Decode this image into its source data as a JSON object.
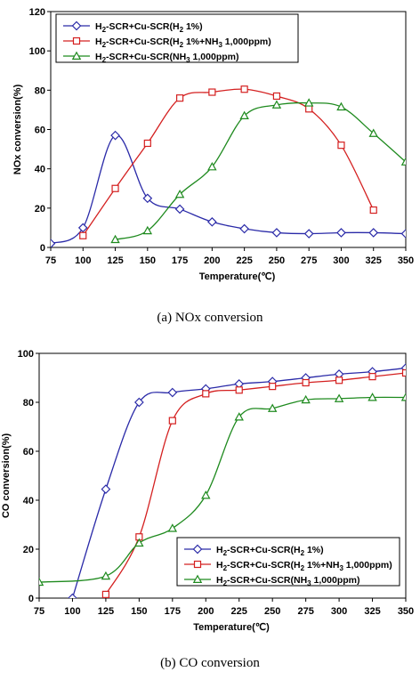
{
  "chart_data": [
    {
      "type": "line",
      "caption": "(a)  NOx  conversion",
      "xlabel": "Temperature(℃)",
      "ylabel": "NOx conversion(%)",
      "xlim": [
        75,
        350
      ],
      "ylim": [
        0,
        120
      ],
      "xticks": [
        75,
        100,
        125,
        150,
        175,
        200,
        225,
        250,
        275,
        300,
        325,
        350
      ],
      "yticks": [
        0,
        20,
        40,
        60,
        80,
        100,
        120
      ],
      "grid": false,
      "legend_position": "top-left",
      "series": [
        {
          "name": "H2-SCR+Cu-SCR(H2 1%)",
          "legend_parts": [
            "H",
            "2",
            "-SCR+Cu-SCR(H",
            "2",
            " 1%)"
          ],
          "color": "#2a2aa8",
          "marker": "diamond",
          "x": [
            75,
            100,
            125,
            150,
            175,
            200,
            225,
            250,
            275,
            300,
            325,
            350
          ],
          "y": [
            2,
            10,
            57,
            25,
            19.5,
            13,
            9.5,
            7.5,
            7,
            7.5,
            7.5,
            7
          ]
        },
        {
          "name": "H2-SCR+Cu-SCR(H2 1%+NH3 1,000ppm)",
          "legend_parts": [
            "H",
            "2",
            "-SCR+Cu-SCR(H",
            "2",
            " 1%+NH",
            "3",
            " 1,000ppm)"
          ],
          "color": "#d42020",
          "marker": "square",
          "x": [
            100,
            125,
            150,
            175,
            200,
            225,
            250,
            275,
            300,
            325
          ],
          "y": [
            6,
            30,
            53,
            76,
            79,
            80.5,
            77,
            70.5,
            52,
            19
          ]
        },
        {
          "name": "H2-SCR+Cu-SCR(NH3 1,000ppm)",
          "legend_parts": [
            "H",
            "2",
            "-SCR+Cu-SCR(NH",
            "3",
            " 1,000ppm)"
          ],
          "color": "#1e8a1e",
          "marker": "triangle",
          "x": [
            125,
            150,
            175,
            200,
            225,
            250,
            275,
            300,
            325,
            350
          ],
          "y": [
            4,
            8.5,
            27,
            41,
            67,
            72.5,
            73.5,
            71.5,
            58,
            43.5
          ]
        }
      ]
    },
    {
      "type": "line",
      "caption": "(b)  CO  conversion",
      "xlabel": "Temperature(℃)",
      "ylabel": "CO conversion(%)",
      "xlim": [
        75,
        350
      ],
      "ylim": [
        0,
        100
      ],
      "xticks": [
        75,
        100,
        125,
        150,
        175,
        200,
        225,
        250,
        275,
        300,
        325,
        350
      ],
      "yticks": [
        0,
        20,
        40,
        60,
        80,
        100
      ],
      "grid": false,
      "legend_position": "bottom-right",
      "series": [
        {
          "name": "H2-SCR+Cu-SCR(H2 1%)",
          "legend_parts": [
            "H",
            "2",
            "-SCR+Cu-SCR(H",
            "2",
            "  1%)"
          ],
          "color": "#2a2aa8",
          "marker": "diamond",
          "x": [
            100,
            125,
            150,
            175,
            200,
            225,
            250,
            275,
            300,
            325,
            350
          ],
          "y": [
            0,
            44.5,
            80,
            84,
            85.5,
            87.5,
            88.5,
            90,
            91.5,
            92.5,
            94
          ]
        },
        {
          "name": "H2-SCR+Cu-SCR(H2 1%+NH3 1,000ppm)",
          "legend_parts": [
            "H",
            "2",
            "-SCR+Cu-SCR(H",
            "2",
            "  1%+NH",
            "3",
            "  1,000ppm)"
          ],
          "color": "#d42020",
          "marker": "square",
          "x": [
            125,
            150,
            175,
            200,
            225,
            250,
            275,
            300,
            325,
            350
          ],
          "y": [
            1.5,
            25,
            72.5,
            83.5,
            85,
            86.5,
            88,
            89,
            90.5,
            92
          ]
        },
        {
          "name": "H2-SCR+Cu-SCR(NH3 1,000ppm)",
          "legend_parts": [
            "H",
            "2",
            "-SCR+Cu-SCR(NH",
            "3",
            "  1,000ppm)"
          ],
          "color": "#1e8a1e",
          "marker": "triangle",
          "x": [
            75,
            125,
            150,
            175,
            200,
            225,
            250,
            275,
            300,
            325,
            350
          ],
          "y": [
            6.5,
            9,
            22.5,
            28.5,
            42,
            74,
            77.5,
            81,
            81.5,
            82,
            82
          ]
        }
      ]
    }
  ]
}
